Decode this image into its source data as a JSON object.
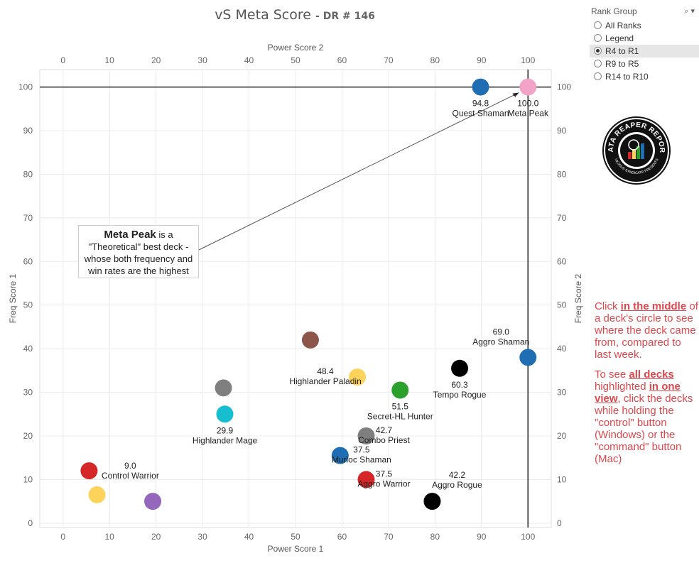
{
  "header": {
    "title": "vS Meta Score",
    "subtitle": "- DR # 146"
  },
  "filter": {
    "title": "Rank Group",
    "tools": "⌕ ▾",
    "options": [
      {
        "label": "All Ranks",
        "selected": false
      },
      {
        "label": "Legend",
        "selected": false
      },
      {
        "label": "R4 to R1",
        "selected": true
      },
      {
        "label": "R9 to R5",
        "selected": false
      },
      {
        "label": "R14 to R10",
        "selected": false
      }
    ]
  },
  "callout": {
    "bold": "Meta Peak",
    "line1_rest": " is a",
    "body": "\"Theoretical\" best deck - whose both frequency and win rates are the highest"
  },
  "note": {
    "p1": [
      {
        "text": "Click ",
        "bold": false
      },
      {
        "text": "in the middle",
        "bold": true
      },
      {
        "text": " of a deck's circle to see where the deck came from, compared to last week.",
        "bold": false
      }
    ],
    "p2": [
      {
        "text": "To see ",
        "bold": false
      },
      {
        "text": "all decks ",
        "bold": true
      },
      {
        "text": "highlighted ",
        "bold": false
      },
      {
        "text": "in one view",
        "bold": true
      },
      {
        "text": ", click the decks while holding the \"control\" button (Windows) or the \"command\" button (Mac)",
        "bold": false
      }
    ]
  },
  "chart_data": {
    "type": "scatter",
    "title": "vS Meta Score - DR # 146",
    "xlabel": "Power Score 1",
    "x2label": "Power Score 2",
    "ylabel": "Freq Score 1",
    "y2label": "Freq Score 2",
    "xlim": [
      -5,
      105
    ],
    "ylim": [
      -1,
      104
    ],
    "x_ticks": [
      0,
      10,
      20,
      30,
      40,
      50,
      60,
      70,
      80,
      90,
      100
    ],
    "y_ticks": [
      0,
      10,
      20,
      30,
      40,
      50,
      60,
      70,
      80,
      90,
      100
    ],
    "grid": true,
    "reference_lines": {
      "x": 100,
      "y": 100
    },
    "points": [
      {
        "name": "Quest Shaman",
        "value": "94.8",
        "x": 89.8,
        "y": 100,
        "color": "#1f6eb4"
      },
      {
        "name": "Meta Peak",
        "value": "100.0",
        "x": 100,
        "y": 100,
        "color": "#f4a3c8"
      },
      {
        "name": "Aggro Shaman",
        "value": "69.0",
        "x": 100,
        "y": 38,
        "color": "#1f6eb4"
      },
      {
        "name": "Tempo Rogue",
        "value": "60.3",
        "x": 85.3,
        "y": 35.5,
        "color": "#000000"
      },
      {
        "name": "Secret-HL Hunter",
        "value": "51.5",
        "x": 72.5,
        "y": 30.5,
        "color": "#2ca02c"
      },
      {
        "name": "Highlander Paladin",
        "value": "48.4",
        "x": 63.3,
        "y": 33.5,
        "color": "#fdd35b"
      },
      {
        "name": "",
        "value": "",
        "x": 53.2,
        "y": 42,
        "color": "#8c564b"
      },
      {
        "name": "",
        "value": "",
        "x": 34.5,
        "y": 31,
        "color": "#7f7f7f"
      },
      {
        "name": "Highlander Mage",
        "value": "29.9",
        "x": 34.8,
        "y": 25,
        "color": "#17becf"
      },
      {
        "name": "Combo Priest",
        "value": "42.7",
        "x": 65.2,
        "y": 20,
        "color": "#7f7f7f"
      },
      {
        "name": "Murloc Shaman",
        "value": "37.5",
        "x": 59.6,
        "y": 15.5,
        "color": "#1f6eb4"
      },
      {
        "name": "Aggro Warrior",
        "value": "37.5",
        "x": 65.2,
        "y": 10,
        "color": "#d62728"
      },
      {
        "name": "Aggro Rogue",
        "value": "42.2",
        "x": 79.4,
        "y": 5,
        "color": "#000000"
      },
      {
        "name": "Control Warrior",
        "value": "9.0",
        "x": 5.6,
        "y": 12,
        "color": "#d62728"
      },
      {
        "name": "",
        "value": "",
        "x": 7.3,
        "y": 6.5,
        "color": "#fdd35b"
      },
      {
        "name": "",
        "value": "",
        "x": 19.3,
        "y": 5,
        "color": "#9467bd"
      }
    ]
  },
  "logo": {
    "ring_text": "DATA REAPER REPORT",
    "inner_text": "VICIOUS SYNDICATE PRESENTS"
  }
}
